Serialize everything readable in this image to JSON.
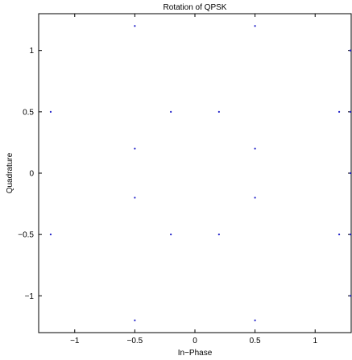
{
  "chart_data": {
    "type": "scatter",
    "title": "Rotation of QPSK",
    "xlabel": "In−Phase",
    "ylabel": "Quadrature",
    "xlim": [
      -1.3,
      1.3
    ],
    "ylim": [
      -1.3,
      1.3
    ],
    "xticks": [
      -1,
      -0.5,
      0,
      0.5,
      1
    ],
    "xtick_labels": [
      "−1",
      "−0.5",
      "0",
      "0.5",
      "1"
    ],
    "yticks": [
      -1,
      -0.5,
      0,
      0.5,
      1
    ],
    "ytick_labels": [
      "−1",
      "−0.5",
      "0",
      "0.5",
      "1"
    ],
    "grid": false,
    "marker_color": "#1f1fc8",
    "series": [
      {
        "x": [
          -0.5,
          0.5,
          -1.2,
          -0.2,
          0.2,
          1.2,
          -0.5,
          0.5,
          -0.5,
          0.5,
          -1.2,
          -0.2,
          0.2,
          1.2,
          -0.5,
          0.5,
          1.3,
          1.3,
          1.3,
          1.3,
          1.3,
          1.3
        ],
        "y": [
          1.2,
          1.2,
          0.5,
          0.5,
          0.5,
          0.5,
          0.2,
          0.2,
          -0.2,
          -0.2,
          -0.5,
          -0.5,
          -0.5,
          -0.5,
          -1.2,
          -1.2,
          1.0,
          0.5,
          0.0,
          -0.5,
          -1.0,
          1.0
        ]
      }
    ]
  }
}
